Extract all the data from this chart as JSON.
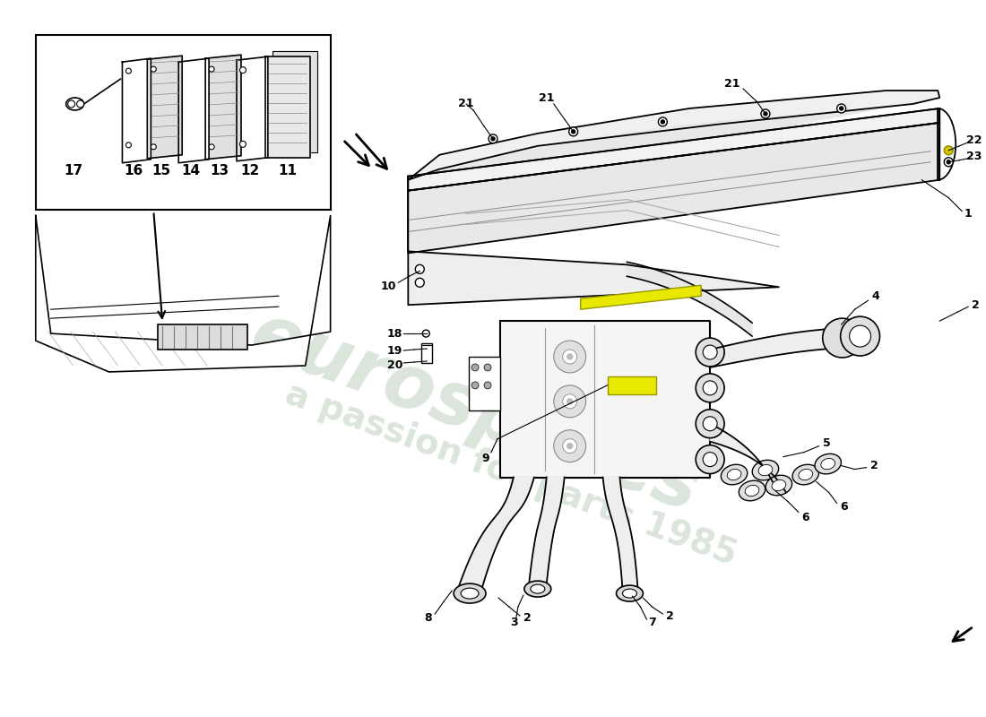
{
  "bg_color": "#ffffff",
  "lc": "#000000",
  "watermark1": "eurospares",
  "watermark2": "a passion for parts 1985",
  "wm_color": "#b8ccb8",
  "wm_alpha": 0.5,
  "lfs": 9,
  "lw_main": 1.3,
  "lw_thin": 0.8
}
